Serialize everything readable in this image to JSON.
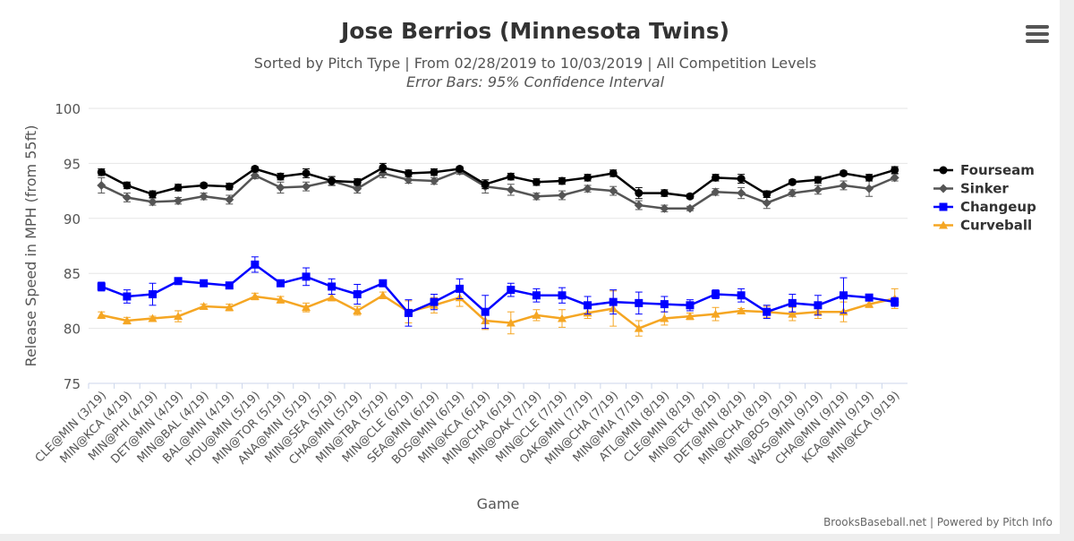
{
  "header": {
    "title": "Jose Berrios (Minnesota Twins)",
    "subtitle": "Sorted by Pitch Type | From 02/28/2019 to 10/03/2019 | All Competition Levels",
    "subtitle2": "Error Bars: 95% Confidence Interval"
  },
  "footer": {
    "credit": "BrooksBaseball.net | Powered by Pitch Info"
  },
  "menu": {
    "icon": "hamburger-menu-icon"
  },
  "chart_data": {
    "type": "line",
    "title": "Jose Berrios (Minnesota Twins)",
    "xlabel": "Game",
    "ylabel": "Release Speed in MPH (from 55ft)",
    "ylim": [
      75,
      100
    ],
    "yticks": [
      75,
      80,
      85,
      90,
      95,
      100
    ],
    "grid": true,
    "legend_position": "right",
    "categories": [
      "CLE@MIN (3/19)",
      "MIN@KCA (4/19)",
      "MIN@PHI (4/19)",
      "DET@MIN (4/19)",
      "MIN@BAL (4/19)",
      "BAL@MIN (4/19)",
      "HOU@MIN (5/19)",
      "MIN@TOR (5/19)",
      "ANA@MIN (5/19)",
      "MIN@SEA (5/19)",
      "CHA@MIN (5/19)",
      "MIN@TBA (5/19)",
      "MIN@CLE (6/19)",
      "SEA@MIN (6/19)",
      "BOS@MIN (6/19)",
      "MIN@KCA (6/19)",
      "MIN@CHA (6/19)",
      "MIN@OAK (7/19)",
      "MIN@CLE (7/19)",
      "OAK@MIN (7/19)",
      "MIN@CHA (7/19)",
      "MIN@MIA (7/19)",
      "ATL@MIN (8/19)",
      "CLE@MIN (8/19)",
      "MIN@TEX (8/19)",
      "DET@MIN (8/19)",
      "MIN@CHA (8/19)",
      "MIN@BOS (9/19)",
      "WAS@MIN (9/19)",
      "CHA@MIN (9/19)",
      "KCA@MIN (9/19)",
      "MIN@KCA (9/19)"
    ],
    "series": [
      {
        "name": "Fourseam",
        "color": "#000000",
        "marker": "circle",
        "values": [
          94.2,
          93.0,
          92.2,
          92.8,
          93.0,
          92.9,
          94.5,
          93.8,
          94.1,
          93.4,
          93.3,
          94.6,
          94.1,
          94.2,
          94.5,
          93.1,
          93.8,
          93.3,
          93.4,
          93.7,
          94.1,
          92.3,
          92.3,
          92.0,
          93.7,
          93.6,
          92.2,
          93.3,
          93.5,
          94.1,
          93.7,
          94.4
        ],
        "err": [
          0.3,
          0.3,
          0.3,
          0.3,
          0.2,
          0.3,
          0.2,
          0.3,
          0.4,
          0.4,
          0.3,
          0.4,
          0.3,
          0.3,
          0.2,
          0.4,
          0.3,
          0.3,
          0.3,
          0.3,
          0.3,
          0.5,
          0.3,
          0.2,
          0.3,
          0.4,
          0.3,
          0.2,
          0.3,
          0.2,
          0.3,
          0.3
        ]
      },
      {
        "name": "Sinker",
        "color": "#555555",
        "marker": "diamond",
        "values": [
          93.0,
          91.9,
          91.5,
          91.6,
          92.0,
          91.7,
          93.9,
          92.8,
          92.9,
          93.4,
          92.7,
          94.1,
          93.5,
          93.4,
          94.3,
          92.9,
          92.6,
          92.0,
          92.1,
          92.7,
          92.5,
          91.2,
          90.9,
          90.9,
          92.4,
          92.3,
          91.4,
          92.3,
          92.6,
          93.0,
          92.7,
          93.7
        ],
        "err": [
          0.7,
          0.4,
          0.3,
          0.3,
          0.3,
          0.4,
          0.3,
          0.5,
          0.4,
          0.4,
          0.4,
          0.4,
          0.3,
          0.3,
          0.3,
          0.6,
          0.5,
          0.3,
          0.4,
          0.3,
          0.4,
          0.4,
          0.3,
          0.2,
          0.3,
          0.5,
          0.5,
          0.3,
          0.4,
          0.4,
          0.7,
          0.3
        ]
      },
      {
        "name": "Changeup",
        "color": "#0000ff",
        "marker": "square",
        "values": [
          83.8,
          82.9,
          83.1,
          84.3,
          84.1,
          83.9,
          85.8,
          84.1,
          84.7,
          83.8,
          83.1,
          84.1,
          81.4,
          82.4,
          83.6,
          81.5,
          83.5,
          83.0,
          83.0,
          82.1,
          82.4,
          82.3,
          82.2,
          82.1,
          83.1,
          83.0,
          81.5,
          82.3,
          82.1,
          83.0,
          82.8,
          82.4
        ],
        "err": [
          0.4,
          0.6,
          1.0,
          0.2,
          0.2,
          0.2,
          0.7,
          0.2,
          0.8,
          0.7,
          0.9,
          0.2,
          1.2,
          0.7,
          0.9,
          1.5,
          0.6,
          0.6,
          0.7,
          0.8,
          1.1,
          1.0,
          0.7,
          0.5,
          0.4,
          0.6,
          0.6,
          0.8,
          0.9,
          1.6,
          0.2,
          0.4
        ]
      },
      {
        "name": "Curveball",
        "color": "#f5a623",
        "marker": "triangle",
        "values": [
          81.2,
          80.7,
          80.9,
          81.1,
          82.0,
          81.9,
          82.9,
          82.6,
          81.9,
          82.8,
          81.6,
          83.0,
          81.5,
          82.1,
          82.8,
          80.7,
          80.5,
          81.2,
          80.9,
          81.4,
          81.8,
          80.0,
          80.9,
          81.1,
          81.3,
          81.6,
          81.5,
          81.3,
          81.5,
          81.5,
          82.2,
          82.7
        ],
        "err": [
          0.3,
          0.3,
          0.2,
          0.5,
          0.2,
          0.3,
          0.3,
          0.3,
          0.4,
          0.3,
          0.4,
          0.3,
          1.0,
          0.7,
          0.8,
          0.8,
          1.0,
          0.5,
          0.8,
          0.5,
          1.6,
          0.7,
          0.6,
          0.3,
          0.6,
          0.2,
          0.5,
          0.6,
          0.6,
          0.9,
          0.3,
          0.9
        ]
      }
    ]
  }
}
